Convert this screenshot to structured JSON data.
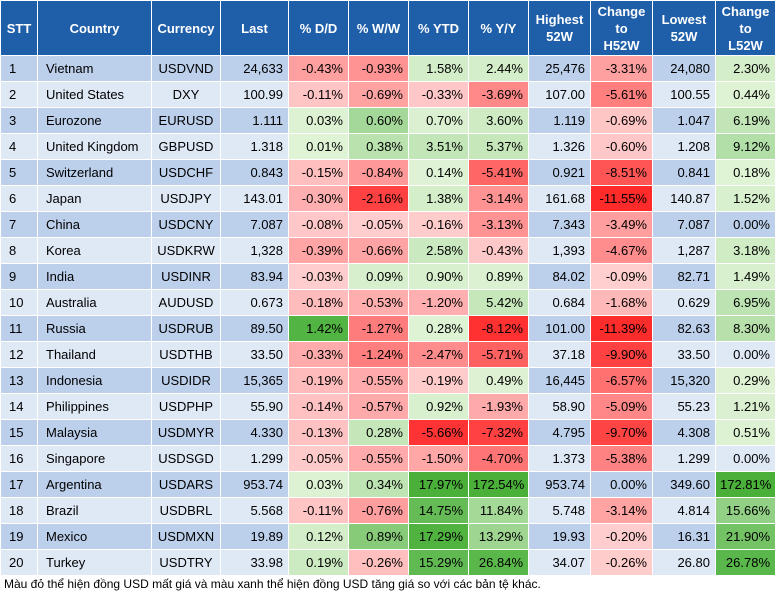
{
  "chart_data": {
    "type": "table",
    "columns": [
      "STT",
      "Country",
      "Currency",
      "Last",
      "% D/D",
      "% W/W",
      "% YTD",
      "% Y/Y",
      "Highest 52W",
      "Change to H52W",
      "Lowest 52W",
      "Change to L52W"
    ],
    "header_lines": [
      [
        "STT"
      ],
      [
        "Country"
      ],
      [
        "Currency"
      ],
      [
        "Last"
      ],
      [
        "% D/D"
      ],
      [
        "% W/W"
      ],
      [
        "% YTD"
      ],
      [
        "% Y/Y"
      ],
      [
        "Highest",
        "52W"
      ],
      [
        "Change",
        "to",
        "H52W"
      ],
      [
        "Lowest",
        "52W"
      ],
      [
        "Change",
        "to",
        "L52W"
      ]
    ],
    "rows": [
      [
        "1",
        "Vietnam",
        "USDVND",
        "24,633",
        "-0.43%",
        "-0.93%",
        "1.58%",
        "2.44%",
        "25,476",
        "-3.31%",
        "24,080",
        "2.30%"
      ],
      [
        "2",
        "United States",
        "DXY",
        "100.99",
        "-0.11%",
        "-0.69%",
        "-0.33%",
        "-3.69%",
        "107.00",
        "-5.61%",
        "100.55",
        "0.44%"
      ],
      [
        "3",
        "Eurozone",
        "EURUSD",
        "1.111",
        "0.03%",
        "0.60%",
        "0.70%",
        "3.60%",
        "1.119",
        "-0.69%",
        "1.047",
        "6.19%"
      ],
      [
        "4",
        "United Kingdom",
        "GBPUSD",
        "1.318",
        "0.01%",
        "0.38%",
        "3.51%",
        "5.37%",
        "1.326",
        "-0.60%",
        "1.208",
        "9.12%"
      ],
      [
        "5",
        "Switzerland",
        "USDCHF",
        "0.843",
        "-0.15%",
        "-0.84%",
        "0.14%",
        "-5.41%",
        "0.921",
        "-8.51%",
        "0.841",
        "0.18%"
      ],
      [
        "6",
        "Japan",
        "USDJPY",
        "143.01",
        "-0.30%",
        "-2.16%",
        "1.38%",
        "-3.14%",
        "161.68",
        "-11.55%",
        "140.87",
        "1.52%"
      ],
      [
        "7",
        "China",
        "USDCNY",
        "7.087",
        "-0.08%",
        "-0.05%",
        "-0.16%",
        "-3.13%",
        "7.343",
        "-3.49%",
        "7.087",
        "0.00%"
      ],
      [
        "8",
        "Korea",
        "USDKRW",
        "1,328",
        "-0.39%",
        "-0.66%",
        "2.58%",
        "-0.43%",
        "1,393",
        "-4.67%",
        "1,287",
        "3.18%"
      ],
      [
        "9",
        "India",
        "USDINR",
        "83.94",
        "-0.03%",
        "0.09%",
        "0.90%",
        "0.89%",
        "84.02",
        "-0.09%",
        "82.71",
        "1.49%"
      ],
      [
        "10",
        "Australia",
        "AUDUSD",
        "0.673",
        "-0.18%",
        "-0.53%",
        "-1.20%",
        "5.42%",
        "0.684",
        "-1.68%",
        "0.629",
        "6.95%"
      ],
      [
        "11",
        "Russia",
        "USDRUB",
        "89.50",
        "1.42%",
        "-1.27%",
        "0.28%",
        "-8.12%",
        "101.00",
        "-11.39%",
        "82.63",
        "8.30%"
      ],
      [
        "12",
        "Thailand",
        "USDTHB",
        "33.50",
        "-0.33%",
        "-1.24%",
        "-2.47%",
        "-5.71%",
        "37.18",
        "-9.90%",
        "33.50",
        "0.00%"
      ],
      [
        "13",
        "Indonesia",
        "USDIDR",
        "15,365",
        "-0.19%",
        "-0.55%",
        "-0.19%",
        "0.49%",
        "16,445",
        "-6.57%",
        "15,320",
        "0.29%"
      ],
      [
        "14",
        "Philippines",
        "USDPHP",
        "55.90",
        "-0.14%",
        "-0.57%",
        "0.92%",
        "-1.93%",
        "58.90",
        "-5.09%",
        "55.23",
        "1.21%"
      ],
      [
        "15",
        "Malaysia",
        "USDMYR",
        "4.330",
        "-0.13%",
        "0.28%",
        "-5.66%",
        "-7.32%",
        "4.795",
        "-9.70%",
        "4.308",
        "0.51%"
      ],
      [
        "16",
        "Singapore",
        "USDSGD",
        "1.299",
        "-0.05%",
        "-0.55%",
        "-1.50%",
        "-4.70%",
        "1.373",
        "-5.38%",
        "1.299",
        "0.00%"
      ],
      [
        "17",
        "Argentina",
        "USDARS",
        "953.74",
        "0.03%",
        "0.34%",
        "17.97%",
        "172.54%",
        "953.74",
        "0.00%",
        "349.60",
        "172.81%"
      ],
      [
        "18",
        "Brazil",
        "USDBRL",
        "5.568",
        "-0.11%",
        "-0.76%",
        "14.75%",
        "11.84%",
        "5.748",
        "-3.14%",
        "4.814",
        "15.66%"
      ],
      [
        "19",
        "Mexico",
        "USDMXN",
        "19.89",
        "0.12%",
        "0.89%",
        "17.29%",
        "13.29%",
        "19.93",
        "-0.20%",
        "16.31",
        "21.90%"
      ],
      [
        "20",
        "Turkey",
        "USDTRY",
        "33.98",
        "0.19%",
        "-0.26%",
        "15.29%",
        "26.84%",
        "34.07",
        "-0.26%",
        "26.80",
        "26.78%"
      ]
    ],
    "heat_columns": {
      "4": {
        "neg_full": 1.5,
        "pos_full": 1.5
      },
      "5": {
        "neg_full": 2.5,
        "pos_full": 1.5
      },
      "6": {
        "neg_full": 6,
        "pos_full": 18
      },
      "7": {
        "neg_full": 8.5,
        "pos_full": 30
      },
      "9": {
        "neg_full": 11.5,
        "pos_full": 1
      },
      "11": {
        "neg_full": 1,
        "pos_full": 30
      }
    },
    "colors": {
      "header_bg": "#1f5fa9",
      "row_odd": "#bcd0ec",
      "row_even": "#dfe9f6",
      "neg_strong": "#ff2a2a",
      "neg_light": "#ffd0d0",
      "pos_strong": "#4ab03a",
      "pos_light": "#e0f3d6"
    }
  },
  "footnote": "Màu đỏ thể hiện đồng USD mất giá và màu xanh thể hiện đồng USD tăng giá so với các bản tệ khác."
}
